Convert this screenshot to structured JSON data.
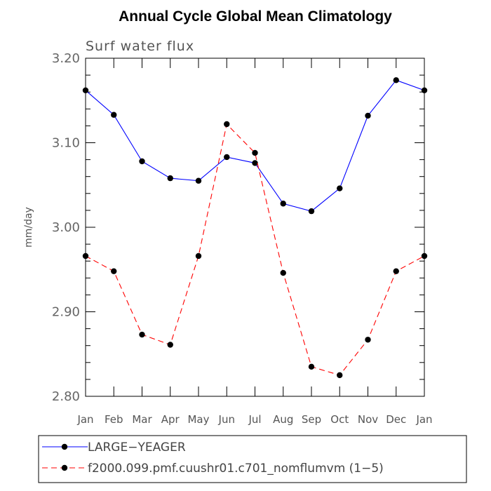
{
  "chart_data": {
    "type": "line",
    "title": "Annual Cycle Global Mean Climatology",
    "subtitle": "Surf water flux",
    "xlabel": "",
    "ylabel": "mm/day",
    "ylim": [
      2.8,
      3.2
    ],
    "yticks": [
      "2.80",
      "2.90",
      "3.00",
      "3.10",
      "3.20"
    ],
    "ytick_values": [
      2.8,
      2.9,
      3.0,
      3.1,
      3.2
    ],
    "categories": [
      "Jan",
      "Feb",
      "Mar",
      "Apr",
      "May",
      "Jun",
      "Jul",
      "Aug",
      "Sep",
      "Oct",
      "Nov",
      "Dec",
      "Jan"
    ],
    "series": [
      {
        "name": "LARGE−YEAGER",
        "color": "#0000ff",
        "style": "solid",
        "values": [
          3.162,
          3.133,
          3.078,
          3.058,
          3.055,
          3.083,
          3.076,
          3.028,
          3.019,
          3.046,
          3.132,
          3.174,
          3.162
        ]
      },
      {
        "name": "f2000.099.pmf.cuushr01.c701_nomflumvm (1−5)",
        "color": "#ff0000",
        "style": "dashed",
        "values": [
          2.966,
          2.948,
          2.873,
          2.861,
          2.966,
          3.122,
          3.088,
          2.946,
          2.835,
          2.825,
          2.867,
          2.948,
          2.966
        ]
      }
    ],
    "legend_position": "bottom"
  }
}
